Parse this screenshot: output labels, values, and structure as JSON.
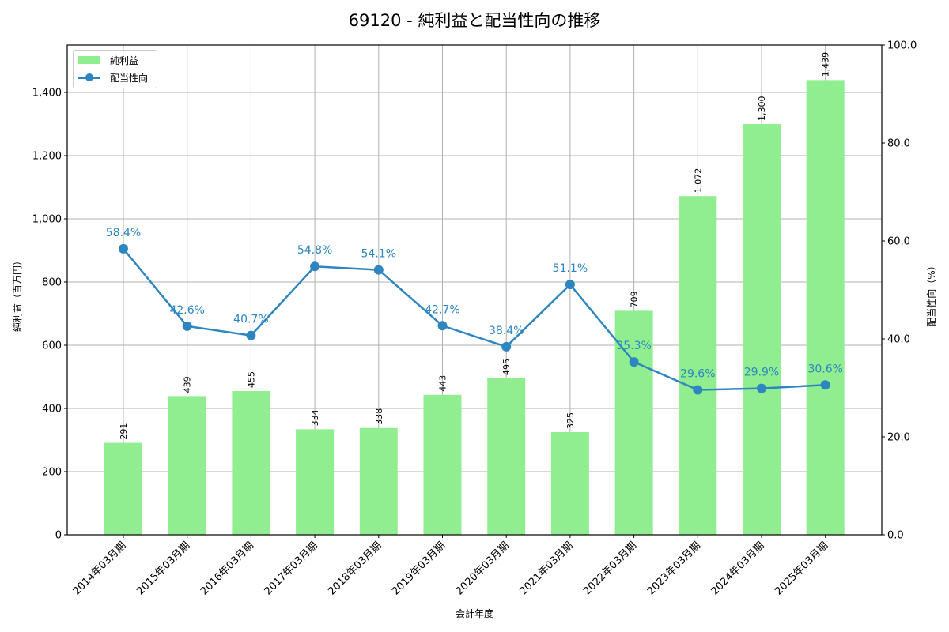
{
  "title": "69120 - 純利益と配当性向の推移",
  "legend": {
    "bar_label": "純利益",
    "line_label": "配当性向"
  },
  "axes": {
    "xlabel": "会計年度",
    "ylabel_left": "純利益（百万円）",
    "ylabel_right": "配当性向（%）",
    "left_ticks": [
      "0",
      "200",
      "400",
      "600",
      "800",
      "1,000",
      "1,200",
      "1,400"
    ],
    "right_ticks": [
      "0.0",
      "20.0",
      "40.0",
      "60.0",
      "80.0",
      "100.0"
    ]
  },
  "colors": {
    "bar": "#90ee90",
    "line": "#2e86c1",
    "grid": "#b0b0b0"
  },
  "chart_data": {
    "type": "bar+line",
    "title": "69120 - 純利益と配当性向の推移",
    "xlabel": "会計年度",
    "ylabel": "純利益（百万円）",
    "ylabel_right": "配当性向（%）",
    "categories": [
      "2014年03月期",
      "2015年03月期",
      "2016年03月期",
      "2017年03月期",
      "2018年03月期",
      "2019年03月期",
      "2020年03月期",
      "2021年03月期",
      "2022年03月期",
      "2023年03月期",
      "2024年03月期",
      "2025年03月期"
    ],
    "series": [
      {
        "name": "純利益",
        "type": "bar",
        "axis": "left",
        "values": [
          291,
          439,
          455,
          334,
          338,
          443,
          495,
          325,
          709,
          1072,
          1300,
          1439
        ],
        "labels": [
          "291",
          "439",
          "455",
          "334",
          "338",
          "443",
          "495",
          "325",
          "709",
          "1,072",
          "1,300",
          "1,439"
        ]
      },
      {
        "name": "配当性向",
        "type": "line",
        "axis": "right",
        "values": [
          58.4,
          42.6,
          40.7,
          54.8,
          54.1,
          42.7,
          38.4,
          51.1,
          35.3,
          29.6,
          29.9,
          30.6
        ],
        "labels": [
          "58.4%",
          "42.6%",
          "40.7%",
          "54.8%",
          "54.1%",
          "42.7%",
          "38.4%",
          "51.1%",
          "35.3%",
          "29.6%",
          "29.9%",
          "30.6%"
        ]
      }
    ],
    "ylim": [
      0,
      1550
    ],
    "ylim_right": [
      0,
      100
    ],
    "grid": true,
    "legend_position": "upper left"
  }
}
